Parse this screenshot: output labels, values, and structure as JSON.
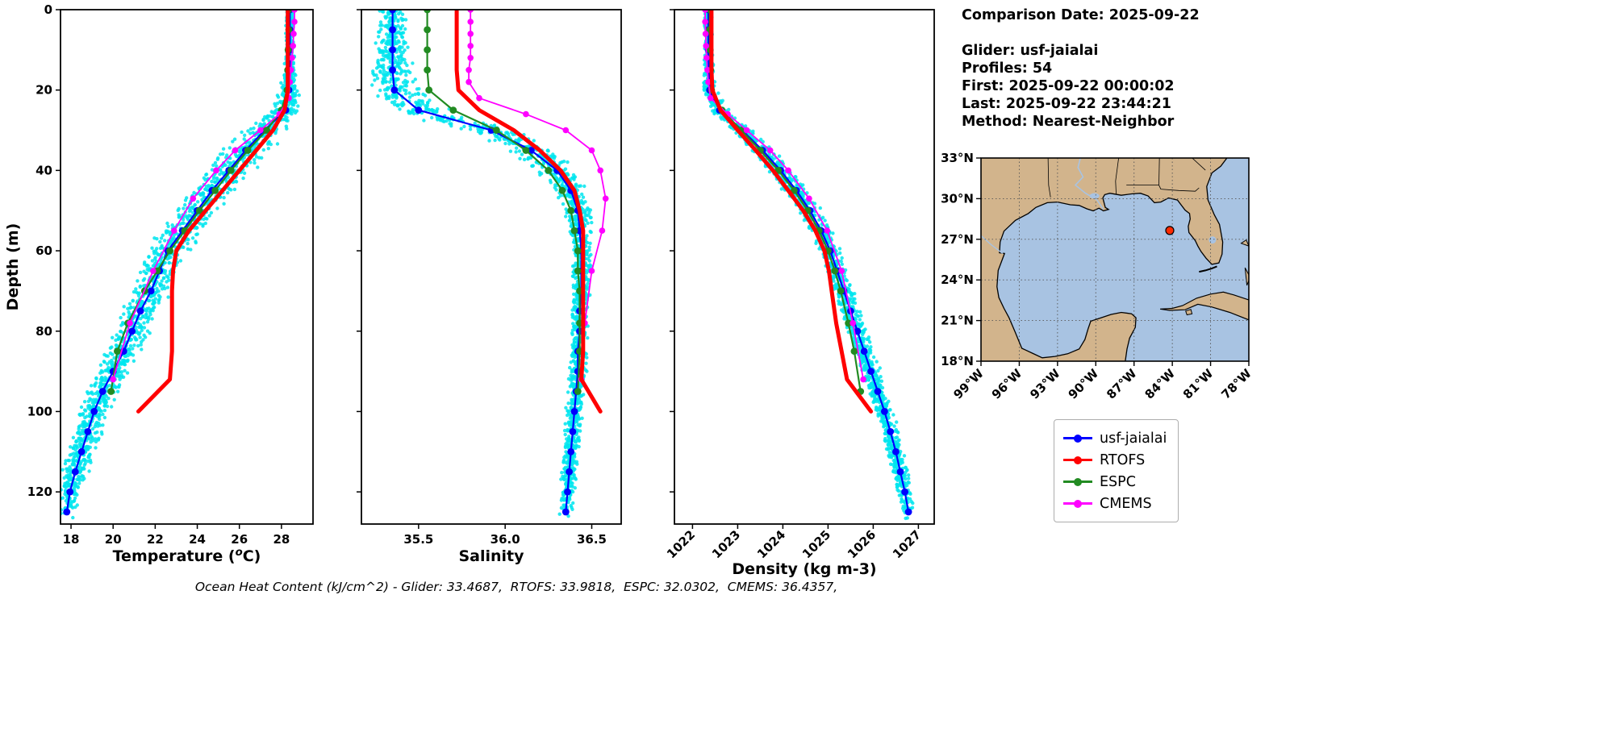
{
  "info": {
    "comparison_date": "Comparison Date: 2025-09-22",
    "glider": "Glider: usf-jaialai",
    "profiles": "Profiles: 54",
    "first": "First: 2025-09-22 00:00:02",
    "last": "Last: 2025-09-22 23:44:21",
    "method": "Method: Nearest-Neighbor"
  },
  "caption": "Ocean Heat Content (kJ/cm^2) - Glider: 33.4687,  RTOFS: 33.9818,  ESPC: 32.0302,  CMEMS: 36.4357,",
  "legend": {
    "items": [
      {
        "label": "usf-jaialai",
        "color": "#0000ff"
      },
      {
        "label": "RTOFS",
        "color": "#ff0000"
      },
      {
        "label": "ESPC",
        "color": "#228B22"
      },
      {
        "label": "CMEMS",
        "color": "#ff00ff"
      }
    ]
  },
  "chart_data": {
    "profiles": {
      "type": "line",
      "ylabel": "Depth (m)",
      "ylim": [
        0,
        128
      ],
      "yticks": [
        "0",
        "20",
        "40",
        "60",
        "80",
        "100",
        "120"
      ],
      "panels": [
        {
          "key": "temperature",
          "xlabel": "Temperature (°C)",
          "xlim": [
            17.5,
            29.5
          ],
          "xticks": [
            "18",
            "20",
            "22",
            "24",
            "26",
            "28"
          ],
          "rotate_xticklabels": false
        },
        {
          "key": "salinity",
          "xlabel": "Salinity",
          "xlim": [
            35.17,
            36.67
          ],
          "xticks": [
            "35.5",
            "36.0",
            "36.5"
          ],
          "rotate_xticklabels": false
        },
        {
          "key": "density",
          "xlabel": "Density (kg m-3)",
          "xlim": [
            1021.6,
            1027.35
          ],
          "xticks": [
            "1022",
            "1023",
            "1024",
            "1025",
            "1026",
            "1027"
          ],
          "rotate_xticklabels": true
        }
      ],
      "series": [
        {
          "name": "usf-jaialai",
          "color": "#0000ff",
          "lw": 2.2,
          "marker_size": 4.4,
          "depth": [
            0,
            5,
            10,
            15,
            20,
            25,
            30,
            35,
            40,
            45,
            50,
            55,
            60,
            65,
            70,
            75,
            80,
            85,
            90,
            95,
            100,
            105,
            110,
            115,
            120,
            125
          ],
          "temperature": [
            28.4,
            28.4,
            28.4,
            28.4,
            28.35,
            28.2,
            27.2,
            26.3,
            25.5,
            24.7,
            24.0,
            23.3,
            22.6,
            22.2,
            21.8,
            21.3,
            20.9,
            20.5,
            20.0,
            19.5,
            19.1,
            18.8,
            18.5,
            18.2,
            17.95,
            17.8
          ],
          "salinity": [
            35.35,
            35.35,
            35.35,
            35.35,
            35.36,
            35.5,
            35.92,
            36.15,
            36.3,
            36.38,
            36.42,
            36.43,
            36.44,
            36.44,
            36.44,
            36.43,
            36.43,
            36.42,
            36.42,
            36.41,
            36.4,
            36.39,
            36.38,
            36.37,
            36.36,
            36.35
          ],
          "density": [
            1022.35,
            1022.35,
            1022.35,
            1022.36,
            1022.38,
            1022.6,
            1023.1,
            1023.55,
            1023.95,
            1024.3,
            1024.6,
            1024.85,
            1025.05,
            1025.2,
            1025.35,
            1025.5,
            1025.65,
            1025.8,
            1025.95,
            1026.1,
            1026.25,
            1026.38,
            1026.5,
            1026.6,
            1026.7,
            1026.78
          ]
        },
        {
          "name": "RTOFS",
          "color": "#ff0000",
          "lw": 5,
          "marker_size": 0,
          "depth": [
            0,
            5,
            10,
            15,
            20,
            25,
            30,
            35,
            40,
            45,
            50,
            55,
            60,
            65,
            70,
            78,
            85,
            92,
            100
          ],
          "temperature": [
            28.3,
            28.3,
            28.3,
            28.3,
            28.3,
            28.15,
            27.6,
            26.8,
            26.0,
            25.2,
            24.4,
            23.6,
            23.0,
            22.85,
            22.8,
            22.8,
            22.8,
            22.7,
            21.2
          ],
          "salinity": [
            35.72,
            35.72,
            35.72,
            35.72,
            35.73,
            35.85,
            36.05,
            36.2,
            36.32,
            36.4,
            36.43,
            36.45,
            36.45,
            36.45,
            36.45,
            36.45,
            36.45,
            36.44,
            36.55
          ],
          "density": [
            1022.42,
            1022.42,
            1022.42,
            1022.42,
            1022.44,
            1022.62,
            1023.0,
            1023.4,
            1023.78,
            1024.12,
            1024.45,
            1024.72,
            1024.92,
            1025.02,
            1025.08,
            1025.18,
            1025.3,
            1025.42,
            1025.95
          ]
        },
        {
          "name": "ESPC",
          "color": "#228B22",
          "lw": 2.2,
          "marker_size": 4.4,
          "depth": [
            0,
            5,
            10,
            15,
            20,
            25,
            30,
            35,
            40,
            45,
            50,
            55,
            60,
            65,
            70,
            78,
            85,
            95
          ],
          "temperature": [
            28.35,
            28.35,
            28.32,
            28.3,
            28.27,
            28.0,
            27.3,
            26.4,
            25.6,
            24.85,
            24.1,
            23.4,
            22.7,
            22.1,
            21.5,
            20.7,
            20.2,
            19.9
          ],
          "salinity": [
            35.55,
            35.55,
            35.55,
            35.55,
            35.56,
            35.7,
            35.95,
            36.12,
            36.25,
            36.33,
            36.38,
            36.4,
            36.42,
            36.42,
            36.43,
            36.43,
            36.43,
            36.42
          ],
          "density": [
            1022.38,
            1022.38,
            1022.39,
            1022.4,
            1022.42,
            1022.65,
            1023.08,
            1023.5,
            1023.9,
            1024.25,
            1024.55,
            1024.8,
            1025.0,
            1025.15,
            1025.28,
            1025.45,
            1025.58,
            1025.72
          ]
        },
        {
          "name": "CMEMS",
          "color": "#ff00ff",
          "lw": 1.8,
          "marker_size": 3.8,
          "depth": [
            0,
            3,
            6,
            9,
            12,
            15,
            18,
            22,
            26,
            30,
            35,
            40,
            47,
            55,
            65,
            78,
            92
          ],
          "temperature": [
            28.62,
            28.62,
            28.58,
            28.55,
            28.5,
            28.45,
            28.4,
            28.35,
            27.9,
            27.0,
            25.8,
            24.9,
            23.8,
            22.9,
            21.9,
            20.8,
            20.0
          ],
          "salinity": [
            35.8,
            35.8,
            35.8,
            35.8,
            35.8,
            35.79,
            35.79,
            35.85,
            36.12,
            36.35,
            36.5,
            36.55,
            36.58,
            36.56,
            36.5,
            36.46,
            36.44
          ],
          "density": [
            1022.28,
            1022.28,
            1022.29,
            1022.3,
            1022.31,
            1022.33,
            1022.35,
            1022.4,
            1022.78,
            1023.2,
            1023.72,
            1024.12,
            1024.58,
            1024.98,
            1025.3,
            1025.55,
            1025.78
          ]
        }
      ],
      "scatter": {
        "name": "glider raw observations",
        "color": "#00E5EE",
        "profiles_drawn": 28,
        "sigma": {
          "temperature": {
            "d": [
              0,
              15,
              25,
              35,
              50,
              70,
              90,
              128
            ],
            "s": [
              0.12,
              0.18,
              0.5,
              0.8,
              0.7,
              0.6,
              0.55,
              0.35
            ]
          },
          "salinity": {
            "d": [
              0,
              15,
              25,
              35,
              50,
              70,
              128
            ],
            "s": [
              0.07,
              0.09,
              0.13,
              0.1,
              0.06,
              0.04,
              0.035
            ]
          },
          "density": {
            "d": [
              0,
              15,
              25,
              40,
              60,
              90,
              128
            ],
            "s": [
              0.05,
              0.07,
              0.12,
              0.18,
              0.16,
              0.14,
              0.1
            ]
          }
        }
      }
    },
    "map": {
      "region": "Gulf of Mexico",
      "lon_range": [
        -99,
        -78
      ],
      "lat_range": [
        18,
        33
      ],
      "lon_ticks": [
        -99,
        -96,
        -93,
        -90,
        -87,
        -84,
        -81,
        -78
      ],
      "lat_ticks": [
        18,
        21,
        24,
        27,
        30,
        33
      ],
      "marker": {
        "lon": -84.2,
        "lat": 27.65,
        "color": "#ff2a00"
      },
      "land_color": "#D2B48C",
      "water_color": "#A8C3E2"
    }
  }
}
